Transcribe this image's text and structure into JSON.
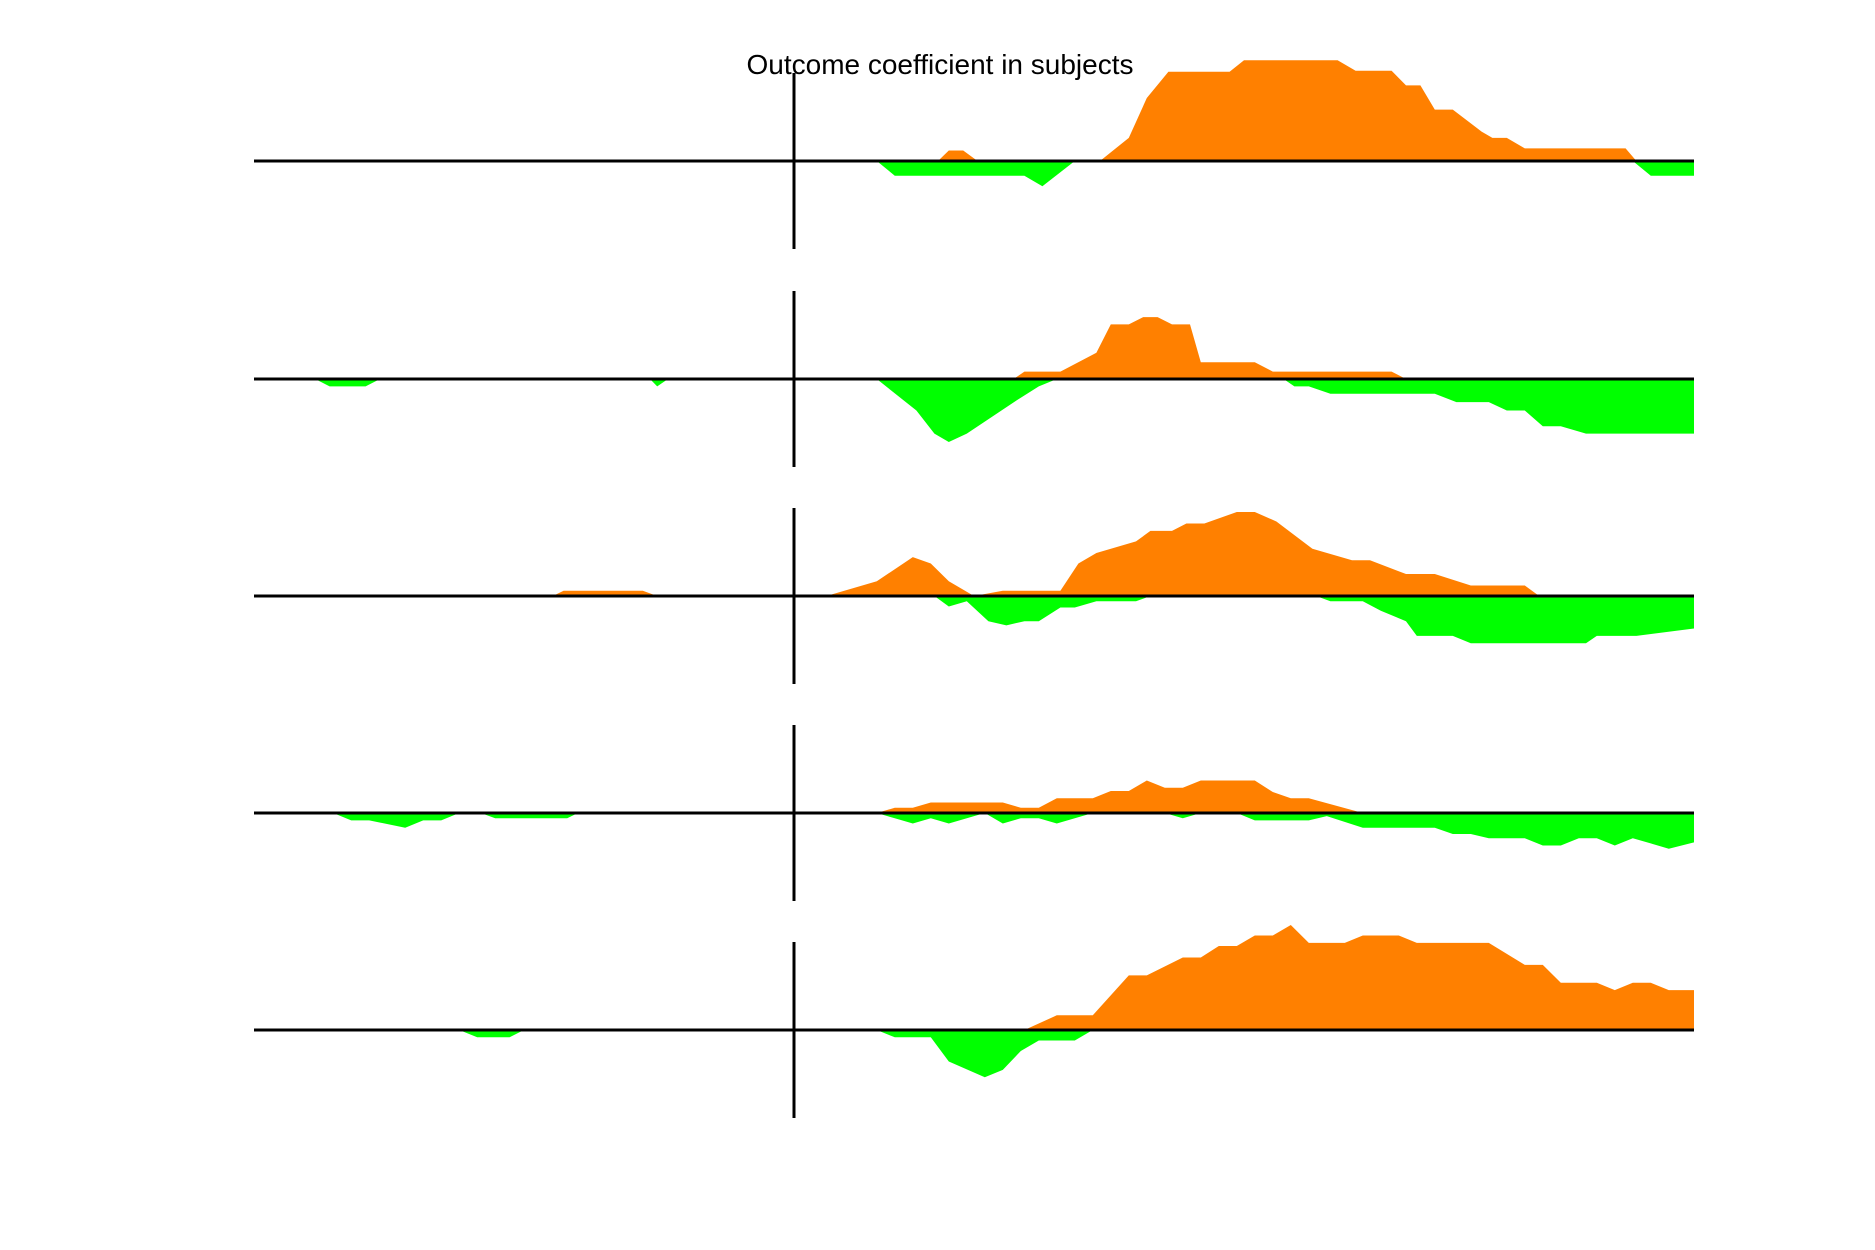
{
  "chart_data": {
    "type": "area",
    "title": "Outcome coefficient in subjects",
    "xlabel": "",
    "ylabel": "",
    "x_range": [
      -30,
      50
    ],
    "y_range": [
      -1,
      1
    ],
    "event_marker_x": 0,
    "grid": false,
    "legend": "none",
    "colors": {
      "positive": "#ff8000",
      "negative": "#00ff00",
      "axis": "#000000"
    },
    "panels": [
      {
        "positive": [
          [
            8,
            0
          ],
          [
            8.6,
            0.1
          ],
          [
            9.4,
            0.1
          ],
          [
            10.2,
            0
          ],
          [
            17,
            0
          ],
          [
            18.6,
            0.22
          ],
          [
            19.6,
            0.6
          ],
          [
            20.8,
            0.85
          ],
          [
            21.7,
            0.85
          ],
          [
            24.2,
            0.85
          ],
          [
            25,
            0.96
          ],
          [
            26,
            0.96
          ],
          [
            30.2,
            0.96
          ],
          [
            31.2,
            0.86
          ],
          [
            33.2,
            0.86
          ],
          [
            34,
            0.72
          ],
          [
            34.8,
            0.72
          ],
          [
            35.6,
            0.49
          ],
          [
            36.6,
            0.49
          ],
          [
            38.2,
            0.28
          ],
          [
            38.8,
            0.22
          ],
          [
            39.6,
            0.22
          ],
          [
            40.6,
            0.12
          ],
          [
            44.8,
            0.12
          ],
          [
            46.2,
            0.12
          ],
          [
            46.8,
            0
          ]
        ],
        "negative": [
          [
            4.6,
            0
          ],
          [
            5.6,
            -0.14
          ],
          [
            7,
            -0.14
          ],
          [
            12.8,
            -0.14
          ],
          [
            13.8,
            -0.24
          ],
          [
            15.6,
            0
          ],
          [
            46.6,
            0
          ],
          [
            47.6,
            -0.14
          ],
          [
            50,
            -0.14
          ],
          [
            50,
            0
          ]
        ]
      },
      {
        "positive": [
          [
            12.2,
            0
          ],
          [
            12.8,
            0.07
          ],
          [
            14.8,
            0.07
          ],
          [
            16.8,
            0.25
          ],
          [
            17.6,
            0.52
          ],
          [
            18.6,
            0.52
          ],
          [
            19.4,
            0.59
          ],
          [
            20.2,
            0.59
          ],
          [
            21,
            0.52
          ],
          [
            22,
            0.52
          ],
          [
            22.6,
            0.16
          ],
          [
            25.6,
            0.16
          ],
          [
            26.6,
            0.07
          ],
          [
            28.2,
            0.07
          ],
          [
            32.2,
            0.07
          ],
          [
            33.2,
            0.07
          ],
          [
            34,
            0
          ]
        ],
        "negative": [
          [
            -26.6,
            0
          ],
          [
            -25.8,
            -0.07
          ],
          [
            -23.8,
            -0.07
          ],
          [
            -23,
            0
          ],
          [
            -8,
            0
          ],
          [
            -7.6,
            -0.07
          ],
          [
            -7,
            0
          ],
          [
            4.6,
            0
          ],
          [
            6.8,
            -0.3
          ],
          [
            7.8,
            -0.52
          ],
          [
            8.6,
            -0.6
          ],
          [
            9.6,
            -0.52
          ],
          [
            12.4,
            -0.2
          ],
          [
            13.6,
            -0.07
          ],
          [
            14.6,
            0
          ],
          [
            27.2,
            0
          ],
          [
            27.8,
            -0.07
          ],
          [
            28.6,
            -0.07
          ],
          [
            29.8,
            -0.14
          ],
          [
            33.8,
            -0.14
          ],
          [
            35.6,
            -0.14
          ],
          [
            36.8,
            -0.22
          ],
          [
            38.6,
            -0.22
          ],
          [
            39.6,
            -0.3
          ],
          [
            40.6,
            -0.3
          ],
          [
            41.6,
            -0.45
          ],
          [
            42.6,
            -0.45
          ],
          [
            44,
            -0.52
          ],
          [
            50,
            -0.52
          ],
          [
            50,
            0
          ]
        ]
      },
      {
        "positive": [
          [
            -13.4,
            0
          ],
          [
            -12.8,
            0.05
          ],
          [
            -8.4,
            0.05
          ],
          [
            -7.6,
            0
          ],
          [
            1.8,
            0
          ],
          [
            4.6,
            0.14
          ],
          [
            6.6,
            0.37
          ],
          [
            7.6,
            0.31
          ],
          [
            8.6,
            0.14
          ],
          [
            10,
            0
          ],
          [
            11.6,
            0.05
          ],
          [
            14.8,
            0.05
          ],
          [
            15.8,
            0.31
          ],
          [
            16.8,
            0.41
          ],
          [
            19,
            0.52
          ],
          [
            19.8,
            0.62
          ],
          [
            21,
            0.62
          ],
          [
            21.8,
            0.69
          ],
          [
            22.8,
            0.69
          ],
          [
            24.6,
            0.8
          ],
          [
            25.6,
            0.8
          ],
          [
            26.8,
            0.71
          ],
          [
            28.8,
            0.45
          ],
          [
            31,
            0.34
          ],
          [
            32,
            0.34
          ],
          [
            34,
            0.21
          ],
          [
            35.6,
            0.21
          ],
          [
            37.6,
            0.1
          ],
          [
            40.6,
            0.1
          ],
          [
            41.4,
            0
          ]
        ],
        "negative": [
          [
            7.8,
            0
          ],
          [
            8.6,
            -0.1
          ],
          [
            9.6,
            -0.05
          ],
          [
            10.8,
            -0.24
          ],
          [
            11.8,
            -0.28
          ],
          [
            12.8,
            -0.24
          ],
          [
            13.6,
            -0.24
          ],
          [
            14.8,
            -0.11
          ],
          [
            15.6,
            -0.11
          ],
          [
            16.8,
            -0.05
          ],
          [
            19,
            -0.05
          ],
          [
            19.8,
            0
          ],
          [
            29,
            0
          ],
          [
            29.8,
            -0.05
          ],
          [
            31.6,
            -0.05
          ],
          [
            32.6,
            -0.14
          ],
          [
            34,
            -0.24
          ],
          [
            34.6,
            -0.38
          ],
          [
            36.6,
            -0.38
          ],
          [
            37.6,
            -0.45
          ],
          [
            44,
            -0.45
          ],
          [
            44.6,
            -0.38
          ],
          [
            46.8,
            -0.38
          ],
          [
            50,
            -0.31
          ],
          [
            50,
            0
          ]
        ]
      },
      {
        "positive": [
          [
            4.6,
            0
          ],
          [
            5.6,
            0.05
          ],
          [
            6.6,
            0.05
          ],
          [
            7.6,
            0.1
          ],
          [
            11.6,
            0.1
          ],
          [
            12.6,
            0.05
          ],
          [
            13.6,
            0.05
          ],
          [
            14.6,
            0.14
          ],
          [
            16.6,
            0.14
          ],
          [
            17.6,
            0.21
          ],
          [
            18.6,
            0.21
          ],
          [
            19.6,
            0.31
          ],
          [
            20.6,
            0.24
          ],
          [
            21.6,
            0.24
          ],
          [
            22.6,
            0.31
          ],
          [
            25.6,
            0.31
          ],
          [
            26.6,
            0.2
          ],
          [
            27.6,
            0.14
          ],
          [
            28.6,
            0.14
          ],
          [
            31.6,
            0
          ]
        ],
        "negative": [
          [
            -25.6,
            0
          ],
          [
            -24.6,
            -0.07
          ],
          [
            -23.6,
            -0.07
          ],
          [
            -21.6,
            -0.14
          ],
          [
            -20.6,
            -0.07
          ],
          [
            -19.6,
            -0.07
          ],
          [
            -18.6,
            0
          ],
          [
            -17.4,
            0
          ],
          [
            -16.6,
            -0.05
          ],
          [
            -12.6,
            -0.05
          ],
          [
            -12,
            0
          ],
          [
            4.6,
            0
          ],
          [
            5.6,
            -0.05
          ],
          [
            6.6,
            -0.1
          ],
          [
            7.6,
            -0.05
          ],
          [
            8.6,
            -0.1
          ],
          [
            10.6,
            0
          ],
          [
            11.6,
            -0.1
          ],
          [
            12.6,
            -0.05
          ],
          [
            13.6,
            -0.05
          ],
          [
            14.6,
            -0.1
          ],
          [
            16.6,
            0
          ],
          [
            20.6,
            0
          ],
          [
            21.6,
            -0.05
          ],
          [
            22.6,
            0
          ],
          [
            24.6,
            0
          ],
          [
            25.6,
            -0.07
          ],
          [
            28.6,
            -0.07
          ],
          [
            29.6,
            -0.03
          ],
          [
            31.6,
            -0.14
          ],
          [
            35.6,
            -0.14
          ],
          [
            36.6,
            -0.2
          ],
          [
            37.6,
            -0.2
          ],
          [
            38.6,
            -0.24
          ],
          [
            40.6,
            -0.24
          ],
          [
            41.6,
            -0.31
          ],
          [
            42.6,
            -0.31
          ],
          [
            43.6,
            -0.24
          ],
          [
            44.6,
            -0.24
          ],
          [
            45.6,
            -0.31
          ],
          [
            46.6,
            -0.24
          ],
          [
            48.6,
            -0.34
          ],
          [
            50,
            -0.28
          ],
          [
            50,
            0
          ]
        ]
      },
      {
        "positive": [
          [
            12.8,
            0
          ],
          [
            14.6,
            0.14
          ],
          [
            16.6,
            0.14
          ],
          [
            18.6,
            0.52
          ],
          [
            19.6,
            0.52
          ],
          [
            21.6,
            0.69
          ],
          [
            22.6,
            0.69
          ],
          [
            23.6,
            0.8
          ],
          [
            24.6,
            0.8
          ],
          [
            25.6,
            0.9
          ],
          [
            26.6,
            0.9
          ],
          [
            27.6,
            1
          ],
          [
            28.6,
            0.83
          ],
          [
            30.6,
            0.83
          ],
          [
            31.6,
            0.9
          ],
          [
            33.6,
            0.9
          ],
          [
            34.6,
            0.83
          ],
          [
            38.6,
            0.83
          ],
          [
            40.6,
            0.62
          ],
          [
            41.6,
            0.62
          ],
          [
            42.6,
            0.45
          ],
          [
            44.6,
            0.45
          ],
          [
            45.6,
            0.38
          ],
          [
            46.6,
            0.45
          ],
          [
            47.6,
            0.45
          ],
          [
            48.6,
            0.38
          ],
          [
            50,
            0.38
          ],
          [
            50,
            0
          ]
        ],
        "negative": [
          [
            -18.6,
            0
          ],
          [
            -17.6,
            -0.07
          ],
          [
            -15.8,
            -0.07
          ],
          [
            -15,
            0
          ],
          [
            4.6,
            0
          ],
          [
            5.6,
            -0.07
          ],
          [
            7.6,
            -0.07
          ],
          [
            8.6,
            -0.3
          ],
          [
            10.6,
            -0.45
          ],
          [
            11.6,
            -0.38
          ],
          [
            12.6,
            -0.2
          ],
          [
            13.6,
            -0.1
          ],
          [
            15.6,
            -0.1
          ],
          [
            16.6,
            0
          ]
        ]
      }
    ]
  }
}
